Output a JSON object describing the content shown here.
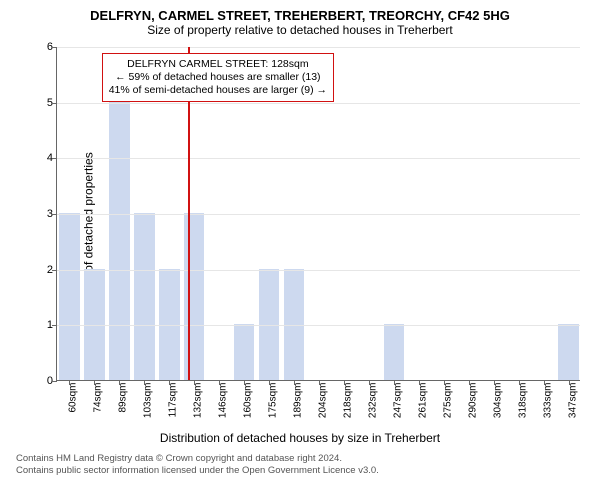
{
  "title": "DELFRYN, CARMEL STREET, TREHERBERT, TREORCHY, CF42 5HG",
  "subtitle": "Size of property relative to detached houses in Treherbert",
  "chart": {
    "type": "bar",
    "ylabel": "Number of detached properties",
    "xlabel": "Distribution of detached houses by size in Treherbert",
    "ylim": [
      0,
      6
    ],
    "ytick_step": 1,
    "grid_color": "#e6e6e6",
    "bar_color": "#cdd9ef",
    "bar_border": "#cdd9ef",
    "background_color": "#ffffff",
    "categories": [
      "60sqm",
      "74sqm",
      "89sqm",
      "103sqm",
      "117sqm",
      "132sqm",
      "146sqm",
      "160sqm",
      "175sqm",
      "189sqm",
      "204sqm",
      "218sqm",
      "232sqm",
      "247sqm",
      "261sqm",
      "275sqm",
      "290sqm",
      "304sqm",
      "318sqm",
      "333sqm",
      "347sqm"
    ],
    "values": [
      3,
      2,
      5,
      3,
      2,
      3,
      0,
      1,
      2,
      2,
      0,
      0,
      0,
      1,
      0,
      0,
      0,
      0,
      0,
      0,
      1
    ],
    "reference": {
      "x_value_sqm": 128,
      "line_color": "#d11111",
      "line_width": 2,
      "callout_border": "#d11111",
      "callout_lines": [
        "DELFRYN CARMEL STREET: 128sqm",
        "← 59% of detached houses are smaller (13)",
        "41% of semi-detached houses are larger (9) →"
      ]
    }
  },
  "footer": {
    "line1": "Contains HM Land Registry data © Crown copyright and database right 2024.",
    "line2": "Contains public sector information licensed under the Open Government Licence v3.0."
  }
}
